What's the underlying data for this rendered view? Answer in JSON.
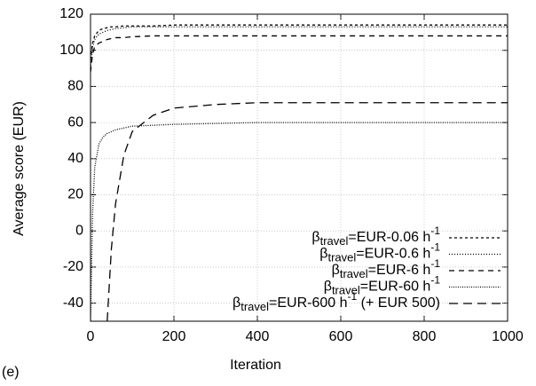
{
  "chart_data": {
    "type": "line",
    "xlabel": "Iteration",
    "ylabel": "Average score (EUR)",
    "panel_label": "(e)",
    "x": [
      0,
      5,
      10,
      20,
      30,
      40,
      50,
      60,
      80,
      100,
      150,
      200,
      300,
      400,
      500,
      600,
      700,
      800,
      900,
      1000
    ],
    "series": [
      {
        "name": "βtravel=EUR-0.06 h-1",
        "color": "#000000",
        "dash": "3,3",
        "values": [
          95,
          104,
          108,
          111,
          112,
          112.5,
          113,
          113,
          113.5,
          113.5,
          113.5,
          114,
          114,
          114,
          114,
          114,
          114,
          114,
          114,
          114
        ]
      },
      {
        "name": "βtravel=EUR-0.6 h-1",
        "color": "#000000",
        "dash": "1,2",
        "values": [
          90,
          102,
          106,
          109,
          110,
          111,
          111.5,
          112,
          112.5,
          113,
          113,
          113,
          113,
          113,
          113,
          113,
          113,
          113,
          113,
          113
        ]
      },
      {
        "name": "βtravel=EUR-6 h-1",
        "color": "#000000",
        "dash": "6,5",
        "values": [
          88,
          98,
          102,
          104,
          105,
          106,
          106.5,
          107,
          107,
          107.5,
          108,
          108,
          108,
          108,
          108,
          108,
          108,
          108,
          108,
          108
        ]
      },
      {
        "name": "βtravel=EUR-60 h-1",
        "color": "#000000",
        "dash": "1,1.5",
        "values": [
          -50,
          10,
          35,
          48,
          52,
          54,
          55,
          56,
          57,
          58,
          58.5,
          59,
          59.5,
          60,
          60,
          60,
          60,
          60,
          60,
          60
        ]
      },
      {
        "name": "βtravel=EUR-600 h-1 (+ EUR 500)",
        "color": "#000000",
        "dash": "10,6",
        "values": [
          null,
          null,
          null,
          null,
          null,
          -50,
          -10,
          15,
          42,
          55,
          64,
          68,
          70,
          71,
          71,
          71,
          71,
          71,
          71,
          71
        ]
      }
    ],
    "xlim": [
      0,
      1000
    ],
    "xticks": [
      0,
      200,
      400,
      600,
      800,
      1000
    ],
    "ylim": [
      -50,
      120
    ],
    "yticks": [
      -40,
      -20,
      0,
      20,
      40,
      60,
      80,
      100,
      120
    ],
    "grid": true,
    "legend": "lower right"
  }
}
